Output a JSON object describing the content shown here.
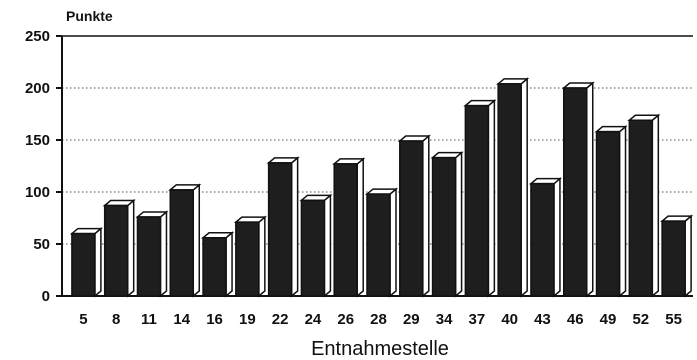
{
  "chart_data": {
    "type": "bar",
    "style": "3d",
    "y_unit": "Punkte",
    "xlabel": "Entnahmestelle",
    "categories": [
      "5",
      "8",
      "11",
      "14",
      "16",
      "19",
      "22",
      "24",
      "26",
      "28",
      "29",
      "34",
      "37",
      "40",
      "43",
      "46",
      "49",
      "52",
      "55"
    ],
    "values": [
      60,
      87,
      76,
      102,
      56,
      71,
      128,
      92,
      127,
      98,
      149,
      133,
      183,
      204,
      108,
      200,
      158,
      169,
      72
    ],
    "ylim": [
      0,
      250
    ],
    "yticks": [
      0,
      50,
      100,
      150,
      200,
      250
    ],
    "grid": "dotted-horizontal",
    "colors": {
      "bar_front": "#1e1e1e",
      "bar_side": "#ffffff",
      "bar_top": "#ffffff",
      "outline": "#111111"
    }
  }
}
